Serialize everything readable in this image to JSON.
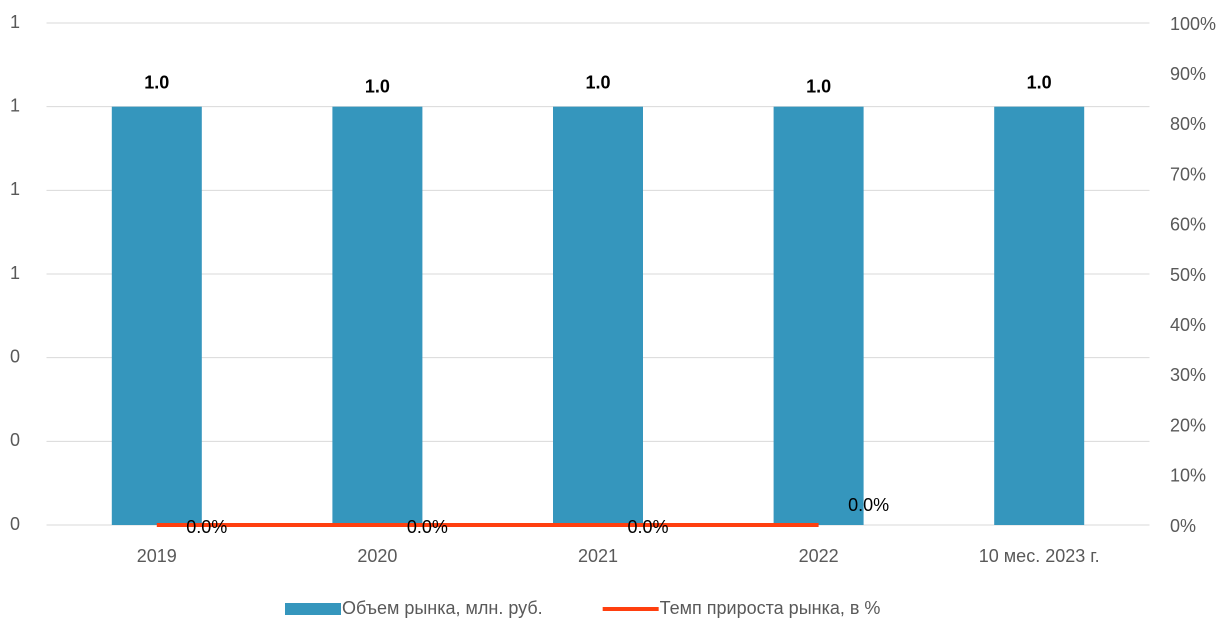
{
  "chart_data": {
    "type": "bar",
    "categories": [
      "2019",
      "2020",
      "2021",
      "2022",
      "10 мес. 2023 г."
    ],
    "series": [
      {
        "name": "Объем рынка, млн. руб.",
        "type": "bar",
        "color": "#3596bd",
        "values": [
          1,
          1,
          1,
          1,
          1
        ],
        "value_labels": [
          "1.0",
          "1.0",
          "1.0",
          "1.0",
          "1.0"
        ]
      },
      {
        "name": "Темп прироста рынка, в %",
        "type": "line",
        "axis": "y2",
        "color": "#ff3f0f",
        "values": [
          0,
          0,
          0,
          0,
          null
        ],
        "value_labels": [
          "0.0%",
          "0.0%",
          "0.0%",
          "0.0%",
          null
        ]
      }
    ],
    "ylim": [
      0,
      1.2
    ],
    "yticks": [
      0,
      {
        "value": 0.2,
        "label": "0"
      },
      {
        "value": 0.4,
        "label": "0"
      },
      {
        "value": 0.6,
        "label": "1"
      },
      {
        "value": 0.8,
        "label": "1"
      },
      {
        "value": 1.0,
        "label": "1"
      },
      {
        "value": 1.2,
        "label": "1"
      }
    ],
    "y2lim": [
      0,
      100
    ],
    "y2ticks": [
      {
        "value": 0,
        "label": "0%"
      },
      {
        "value": 10,
        "label": "10%"
      },
      {
        "value": 20,
        "label": "20%"
      },
      {
        "value": 30,
        "label": "30%"
      },
      {
        "value": 40,
        "label": "40%"
      },
      {
        "value": 50,
        "label": "50%"
      },
      {
        "value": 60,
        "label": "60%"
      },
      {
        "value": 70,
        "label": "70%"
      },
      {
        "value": 80,
        "label": "80%"
      },
      {
        "value": 90,
        "label": "90%"
      },
      {
        "value": 100,
        "label": "100%"
      }
    ],
    "grid": true,
    "legend": "bottom"
  }
}
